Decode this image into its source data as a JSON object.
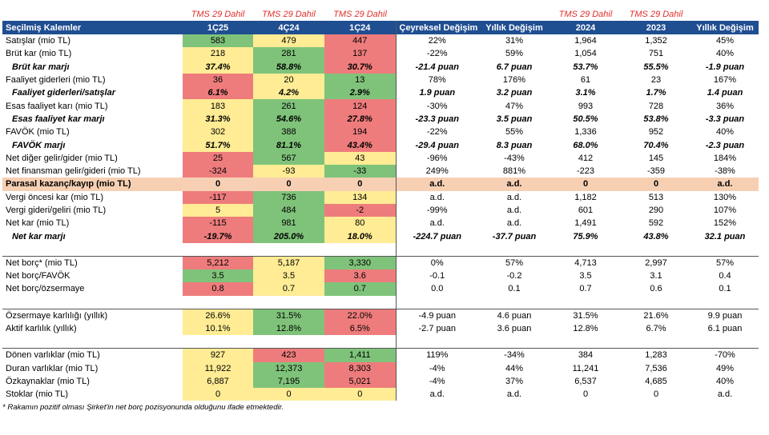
{
  "tms_labels": [
    "TMS 29 Dahil",
    "TMS 29 Dahil",
    "TMS 29 Dahil",
    "TMS 29 Dahil",
    "TMS 29 Dahil"
  ],
  "header": [
    "Seçilmiş Kalemler",
    "1Ç25",
    "4Ç24",
    "1Ç24",
    "Çeyreksel Değişim",
    "Yıllık Değişim",
    "2024",
    "2023",
    "Yıllık Değişim"
  ],
  "rows": [
    {
      "label": "Satışlar (mio TL)",
      "v": [
        "583",
        "479",
        "447",
        "22%",
        "31%",
        "1,964",
        "1,352",
        "45%"
      ],
      "c": [
        "g",
        "y",
        "r"
      ]
    },
    {
      "label": "Brüt kar (mio TL)",
      "v": [
        "218",
        "281",
        "137",
        "-22%",
        "59%",
        "1,054",
        "751",
        "40%"
      ],
      "c": [
        "y",
        "g",
        "r"
      ]
    },
    {
      "label": "Brüt kar marjı",
      "v": [
        "37.4%",
        "58.8%",
        "30.7%",
        "-21.4 puan",
        "6.7 puan",
        "53.7%",
        "55.5%",
        "-1.9 puan"
      ],
      "c": [
        "y",
        "g",
        "r"
      ]
    },
    {
      "label": "Faaliyet giderleri (mio TL)",
      "v": [
        "36",
        "20",
        "13",
        "78%",
        "176%",
        "61",
        "23",
        "167%"
      ],
      "c": [
        "r",
        "y",
        "g"
      ]
    },
    {
      "label": "Faaliyet giderleri/satışlar",
      "v": [
        "6.1%",
        "4.2%",
        "2.9%",
        "1.9 puan",
        "3.2 puan",
        "3.1%",
        "1.7%",
        "1.4 puan"
      ],
      "c": [
        "r",
        "y",
        "g"
      ]
    },
    {
      "label": "Esas faaliyet karı (mio TL)",
      "v": [
        "183",
        "261",
        "124",
        "-30%",
        "47%",
        "993",
        "728",
        "36%"
      ],
      "c": [
        "y",
        "g",
        "r"
      ]
    },
    {
      "label": "Esas faaliyet kar marjı",
      "v": [
        "31.3%",
        "54.6%",
        "27.8%",
        "-23.3 puan",
        "3.5 puan",
        "50.5%",
        "53.8%",
        "-3.3 puan"
      ],
      "c": [
        "y",
        "g",
        "r"
      ]
    },
    {
      "label": "FAVÖK (mio TL)",
      "v": [
        "302",
        "388",
        "194",
        "-22%",
        "55%",
        "1,336",
        "952",
        "40%"
      ],
      "c": [
        "y",
        "g",
        "r"
      ]
    },
    {
      "label": "FAVÖK marjı",
      "v": [
        "51.7%",
        "81.1%",
        "43.4%",
        "-29.4 puan",
        "8.3 puan",
        "68.0%",
        "70.4%",
        "-2.3 puan"
      ],
      "c": [
        "y",
        "g",
        "r"
      ]
    },
    {
      "label": "Net diğer gelir/gider (mio TL)",
      "v": [
        "25",
        "567",
        "43",
        "-96%",
        "-43%",
        "412",
        "145",
        "184%"
      ],
      "c": [
        "r",
        "g",
        "y"
      ]
    },
    {
      "label": "Net finansman gelir/gideri (mio TL)",
      "v": [
        "-324",
        "-93",
        "-33",
        "249%",
        "881%",
        "-223",
        "-359",
        "-38%"
      ],
      "c": [
        "r",
        "y",
        "g"
      ]
    },
    {
      "label": "Parasal kazanç/kayıp (mio TL)",
      "v": [
        "0",
        "0",
        "0",
        "a.d.",
        "a.d.",
        "0",
        "0",
        "a.d."
      ],
      "c": [
        "",
        "",
        ""
      ]
    },
    {
      "label": "Vergi öncesi kar (mio TL)",
      "v": [
        "-117",
        "736",
        "134",
        "a.d.",
        "a.d.",
        "1,182",
        "513",
        "130%"
      ],
      "c": [
        "r",
        "g",
        "y"
      ]
    },
    {
      "label": "Vergi gideri/geliri (mio TL)",
      "v": [
        "5",
        "484",
        "-2",
        "-99%",
        "a.d.",
        "601",
        "290",
        "107%"
      ],
      "c": [
        "y",
        "g",
        "r"
      ]
    },
    {
      "label": "Net kar (mio TL)",
      "v": [
        "-115",
        "981",
        "80",
        "a.d.",
        "a.d.",
        "1,491",
        "592",
        "152%"
      ],
      "c": [
        "r",
        "g",
        "y"
      ]
    },
    {
      "label": "Net kar marjı",
      "v": [
        "-19.7%",
        "205.0%",
        "18.0%",
        "-224.7 puan",
        "-37.7 puan",
        "75.9%",
        "43.8%",
        "32.1 puan"
      ],
      "c": [
        "r",
        "g",
        "y"
      ]
    },
    {
      "label": "Net borç* (mio TL)",
      "v": [
        "5,212",
        "5,187",
        "3,330",
        "0%",
        "57%",
        "4,713",
        "2,997",
        "57%"
      ],
      "c": [
        "r",
        "y",
        "g"
      ]
    },
    {
      "label": "Net borç/FAVÖK",
      "v": [
        "3.5",
        "3.5",
        "3.6",
        "-0.1",
        "-0.2",
        "3.5",
        "3.1",
        "0.4"
      ],
      "c": [
        "g",
        "y",
        "r"
      ]
    },
    {
      "label": "Net borç/özsermaye",
      "v": [
        "0.8",
        "0.7",
        "0.7",
        "0.0",
        "0.1",
        "0.7",
        "0.6",
        "0.1"
      ],
      "c": [
        "r",
        "y",
        "g"
      ]
    },
    {
      "label": "Özsermaye karlılığı (yıllık)",
      "v": [
        "26.6%",
        "31.5%",
        "22.0%",
        "-4.9 puan",
        "4.6 puan",
        "31.5%",
        "21.6%",
        "9.9 puan"
      ],
      "c": [
        "y",
        "g",
        "r"
      ]
    },
    {
      "label": "Aktif karlılık (yıllık)",
      "v": [
        "10.1%",
        "12.8%",
        "6.5%",
        "-2.7 puan",
        "3.6 puan",
        "12.8%",
        "6.7%",
        "6.1 puan"
      ],
      "c": [
        "y",
        "g",
        "r"
      ]
    },
    {
      "label": "Dönen varlıklar (mio TL)",
      "v": [
        "927",
        "423",
        "1,411",
        "119%",
        "-34%",
        "384",
        "1,283",
        "-70%"
      ],
      "c": [
        "y",
        "r",
        "g"
      ]
    },
    {
      "label": "Duran varlıklar (mio TL)",
      "v": [
        "11,922",
        "12,373",
        "8,303",
        "-4%",
        "44%",
        "11,241",
        "7,536",
        "49%"
      ],
      "c": [
        "y",
        "g",
        "r"
      ]
    },
    {
      "label": "Özkaynaklar (mio TL)",
      "v": [
        "6,887",
        "7,195",
        "5,021",
        "-4%",
        "37%",
        "6,537",
        "4,685",
        "40%"
      ],
      "c": [
        "y",
        "g",
        "r"
      ]
    },
    {
      "label": "Stoklar (mio TL)",
      "v": [
        "0",
        "0",
        "0",
        "a.d.",
        "a.d.",
        "0",
        "0",
        "a.d."
      ],
      "c": [
        "y",
        "y",
        "y"
      ]
    }
  ],
  "footnote": "* Rakamın pozitif olması Şirket'in net borç pozisyonunda olduğunu ifade etmektedir."
}
